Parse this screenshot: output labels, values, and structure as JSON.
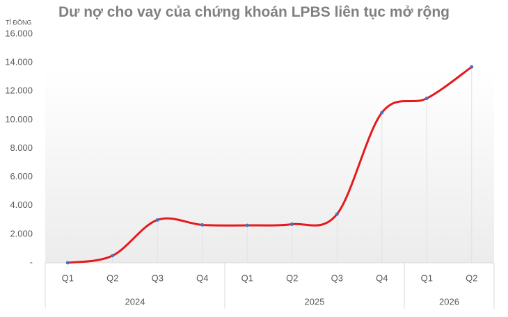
{
  "chart_data": {
    "type": "line",
    "title": "Dư nợ cho vay của chứng khoán LPBS liên tục mở rộng",
    "y_label": "TỈ ĐỒNG",
    "groups": [
      {
        "name": "2024",
        "categories": [
          "Q1",
          "Q2",
          "Q3",
          "Q4"
        ]
      },
      {
        "name": "2025",
        "categories": [
          "Q1",
          "Q2",
          "Q3",
          "Q4"
        ]
      },
      {
        "name": "2026",
        "categories": [
          "Q1",
          "Q2"
        ]
      }
    ],
    "values": [
      0,
      500,
      3000,
      2650,
      2620,
      2700,
      3400,
      10500,
      11500,
      13700
    ],
    "color": "#e41a1c",
    "marker_color": "#4472c4",
    "ylim": [
      0,
      16000
    ],
    "yticks": [
      {
        "value": 0,
        "label": "-"
      },
      {
        "value": 2000,
        "label": "2.000"
      },
      {
        "value": 4000,
        "label": "4.000"
      },
      {
        "value": 6000,
        "label": "6.000"
      },
      {
        "value": 8000,
        "label": "8.000"
      },
      {
        "value": 10000,
        "label": "10.000"
      },
      {
        "value": 12000,
        "label": "12.000"
      },
      {
        "value": 14000,
        "label": "14.000"
      },
      {
        "value": 16000,
        "label": "16.000"
      }
    ],
    "smooth": true
  }
}
